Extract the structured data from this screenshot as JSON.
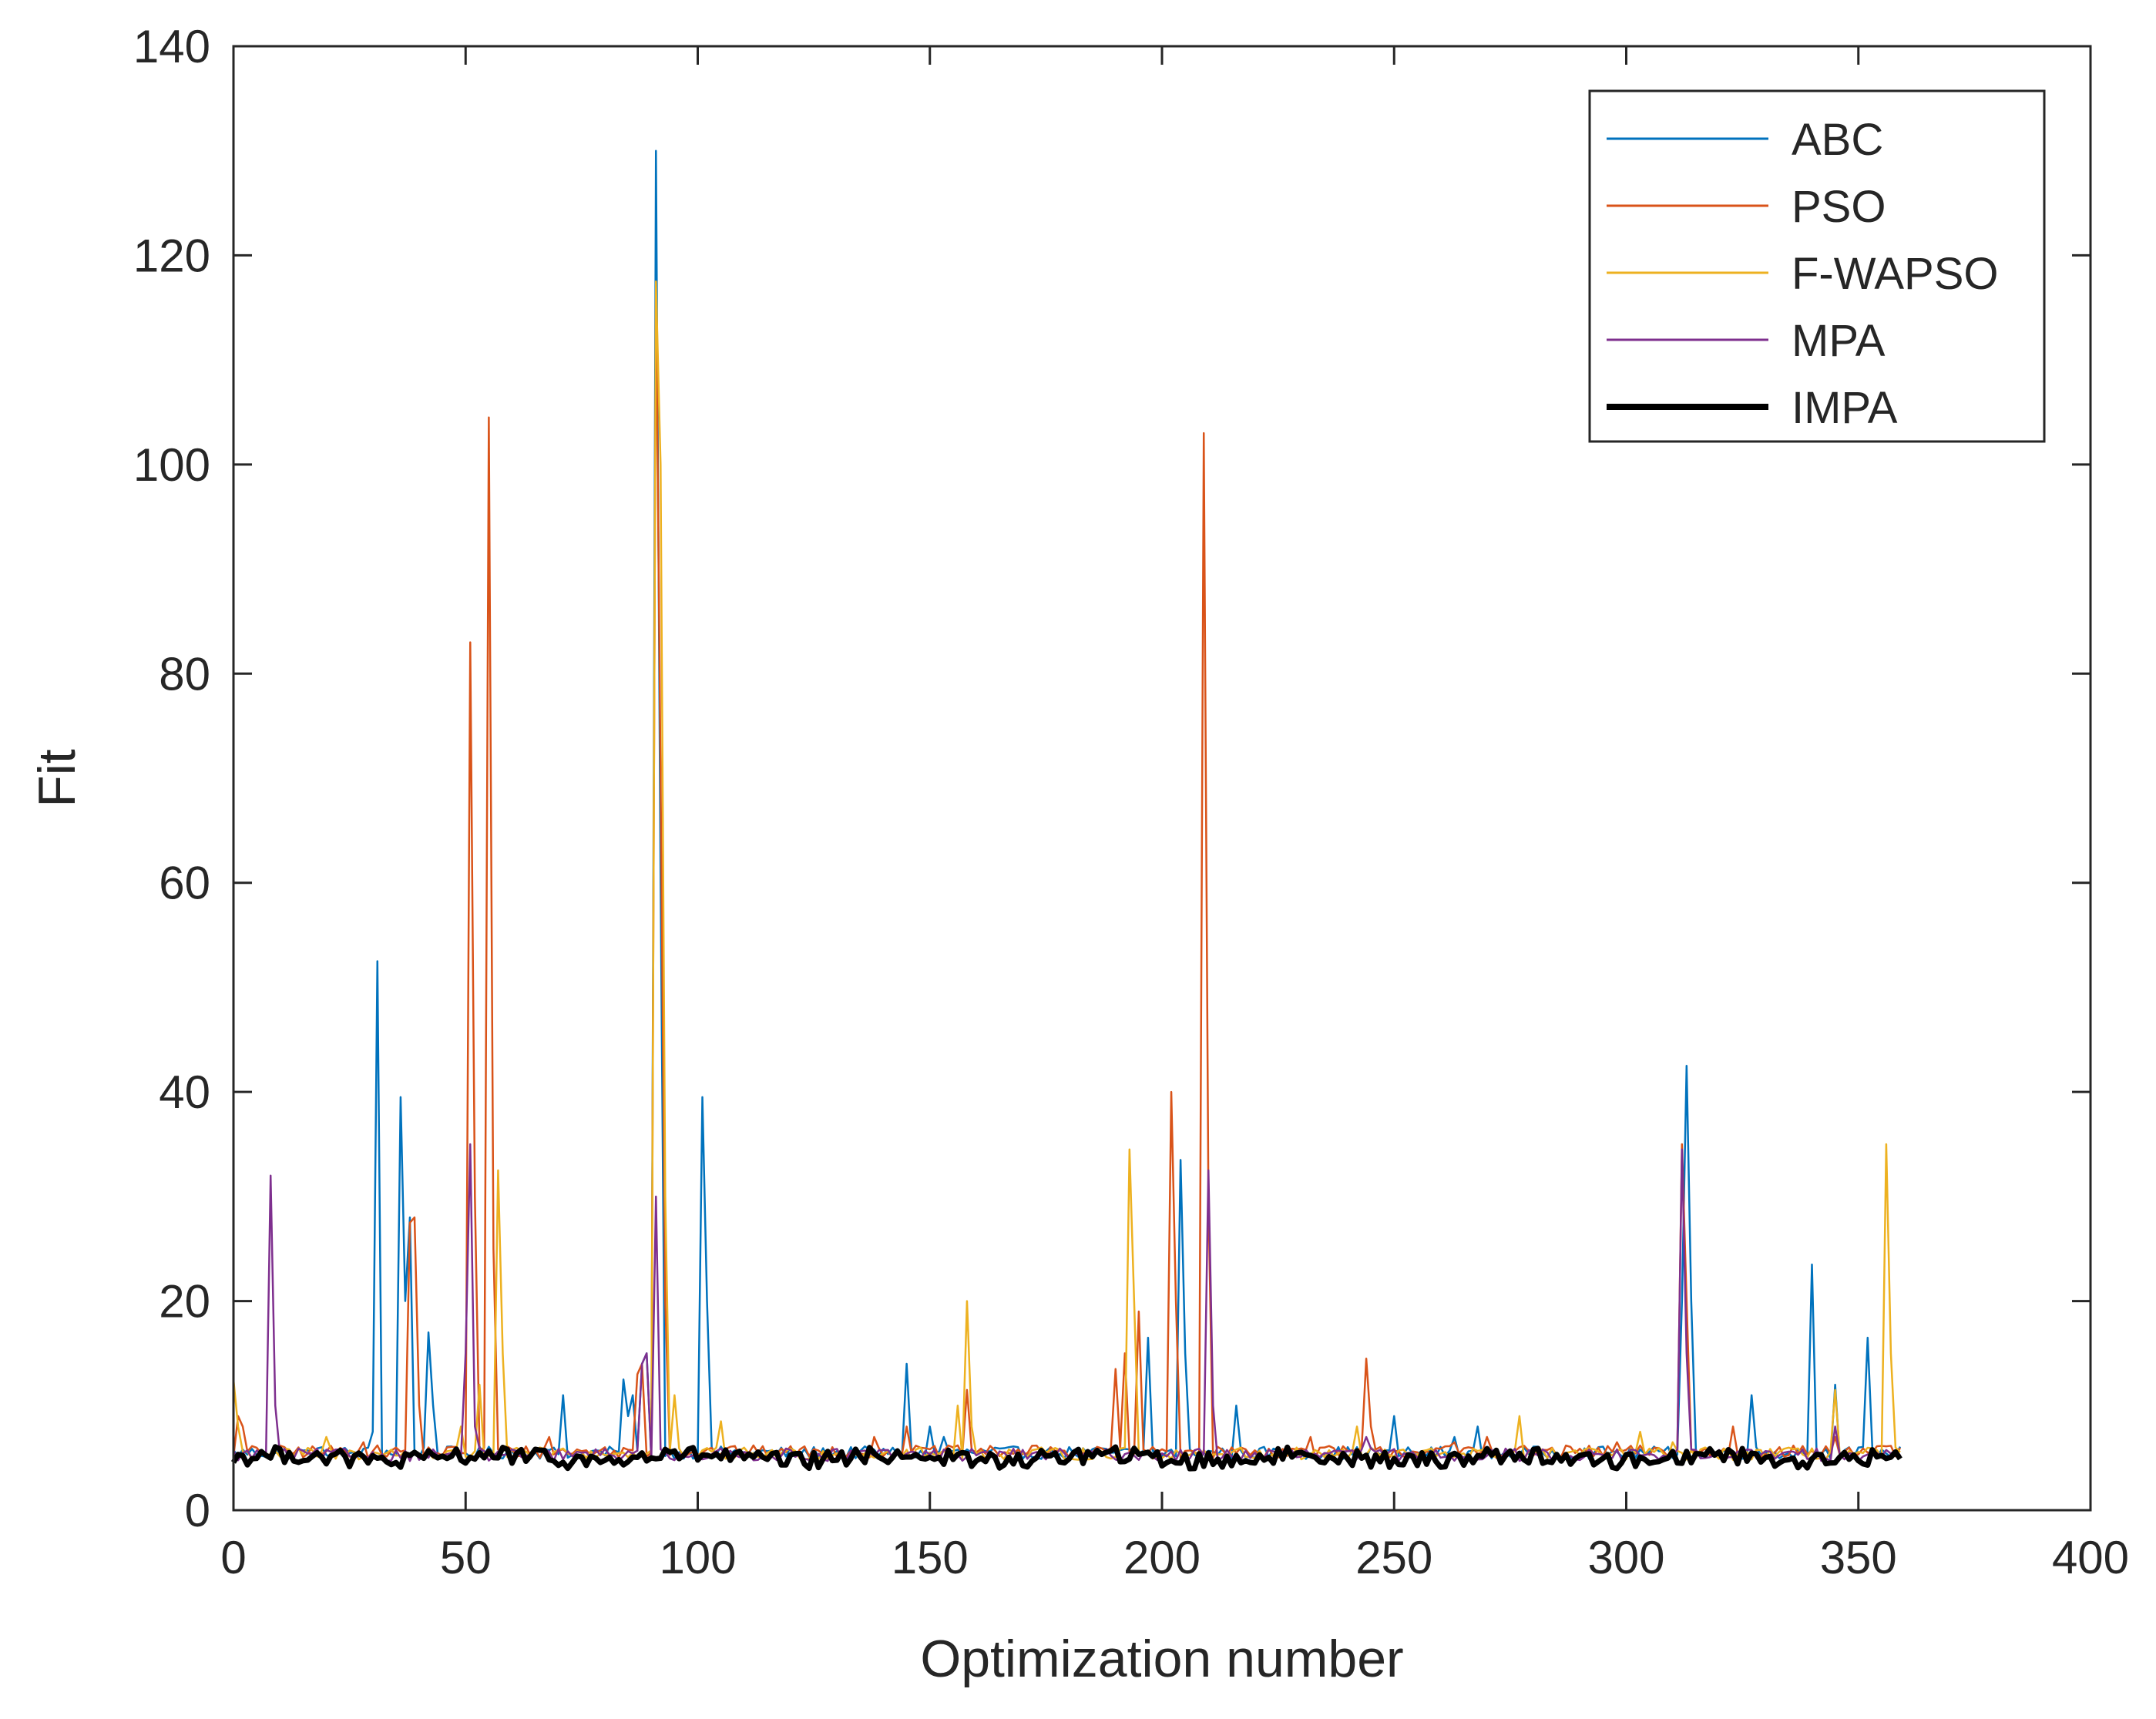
{
  "chart_data": {
    "type": "line",
    "title": "",
    "xlabel": "Optimization number",
    "ylabel": "Fit",
    "xlim": [
      0,
      400
    ],
    "ylim": [
      0,
      140
    ],
    "xticks": [
      0,
      50,
      100,
      150,
      200,
      250,
      300,
      350,
      400
    ],
    "yticks": [
      0,
      20,
      40,
      60,
      80,
      100,
      120,
      140
    ],
    "xtick_labels": [
      "0",
      "50",
      "100",
      "150",
      "200",
      "250",
      "300",
      "350",
      "400"
    ],
    "ytick_labels": [
      "0",
      "20",
      "40",
      "60",
      "80",
      "100",
      "120",
      "140"
    ],
    "grid": false,
    "legend_position": "top-right",
    "n_points": 360,
    "series": [
      {
        "name": "ABC",
        "color": "#0072BD",
        "base": 5.5,
        "spikes": [
          [
            30,
            7.5
          ],
          [
            31,
            52.5
          ],
          [
            36,
            39.5
          ],
          [
            37,
            20
          ],
          [
            38,
            28
          ],
          [
            42,
            17
          ],
          [
            43,
            10
          ],
          [
            71,
            11
          ],
          [
            84,
            12.5
          ],
          [
            85,
            9
          ],
          [
            86,
            11
          ],
          [
            88,
            14
          ],
          [
            89,
            15
          ],
          [
            91,
            130
          ],
          [
            92,
            60
          ],
          [
            101,
            39.5
          ],
          [
            102,
            20
          ],
          [
            145,
            14
          ],
          [
            150,
            8
          ],
          [
            153,
            7
          ],
          [
            197,
            16.5
          ],
          [
            204,
            33.5
          ],
          [
            205,
            15
          ],
          [
            216,
            10
          ],
          [
            250,
            9
          ],
          [
            263,
            7
          ],
          [
            268,
            8
          ],
          [
            312,
            20
          ],
          [
            313,
            42.5
          ],
          [
            314,
            20
          ],
          [
            327,
            11
          ],
          [
            340,
            23.5
          ],
          [
            345,
            12
          ],
          [
            352,
            16.5
          ]
        ]
      },
      {
        "name": "PSO",
        "color": "#D95319",
        "base": 5.6,
        "spikes": [
          [
            1,
            9
          ],
          [
            2,
            8
          ],
          [
            28,
            6.5
          ],
          [
            38,
            27.5
          ],
          [
            39,
            28
          ],
          [
            40,
            10
          ],
          [
            51,
            83
          ],
          [
            52,
            30
          ],
          [
            55,
            104.5
          ],
          [
            56,
            25
          ],
          [
            68,
            7
          ],
          [
            87,
            13
          ],
          [
            88,
            14
          ],
          [
            91,
            117.5
          ],
          [
            92,
            70.5
          ],
          [
            93,
            20
          ],
          [
            138,
            7
          ],
          [
            145,
            8
          ],
          [
            158,
            11.5
          ],
          [
            190,
            13.5
          ],
          [
            192,
            15
          ],
          [
            195,
            19
          ],
          [
            202,
            40
          ],
          [
            203,
            20
          ],
          [
            209,
            103
          ],
          [
            210,
            30
          ],
          [
            232,
            7
          ],
          [
            244,
            14.5
          ],
          [
            245,
            8
          ],
          [
            263,
            6.5
          ],
          [
            270,
            7
          ],
          [
            298,
            6.5
          ],
          [
            312,
            35
          ],
          [
            313,
            20
          ],
          [
            323,
            8
          ],
          [
            345,
            7
          ]
        ]
      },
      {
        "name": "F-WAPSO",
        "color": "#EDB120",
        "base": 5.4,
        "spikes": [
          [
            0,
            12.5
          ],
          [
            1,
            8
          ],
          [
            20,
            7
          ],
          [
            49,
            8
          ],
          [
            53,
            12
          ],
          [
            57,
            32.5
          ],
          [
            58,
            15
          ],
          [
            91,
            117.5
          ],
          [
            92,
            100
          ],
          [
            93,
            30
          ],
          [
            95,
            11
          ],
          [
            105,
            8.5
          ],
          [
            156,
            10
          ],
          [
            158,
            20
          ],
          [
            159,
            8
          ],
          [
            193,
            34.5
          ],
          [
            194,
            20
          ],
          [
            242,
            8
          ],
          [
            277,
            9
          ],
          [
            303,
            7.5
          ],
          [
            310,
            6.5
          ],
          [
            345,
            11.5
          ],
          [
            356,
            35
          ],
          [
            357,
            15
          ]
        ]
      },
      {
        "name": "MPA",
        "color": "#7E2F8E",
        "base": 5.3,
        "spikes": [
          [
            8,
            32
          ],
          [
            9,
            10
          ],
          [
            48,
            6
          ],
          [
            50,
            15
          ],
          [
            51,
            35
          ],
          [
            52,
            8
          ],
          [
            88,
            14
          ],
          [
            89,
            15
          ],
          [
            91,
            30
          ],
          [
            210,
            32.5
          ],
          [
            211,
            10
          ],
          [
            244,
            7
          ],
          [
            312,
            34.5
          ],
          [
            313,
            15
          ],
          [
            345,
            8
          ]
        ]
      },
      {
        "name": "IMPA",
        "color": "#000000",
        "base": 5.0,
        "spikes": []
      }
    ]
  }
}
